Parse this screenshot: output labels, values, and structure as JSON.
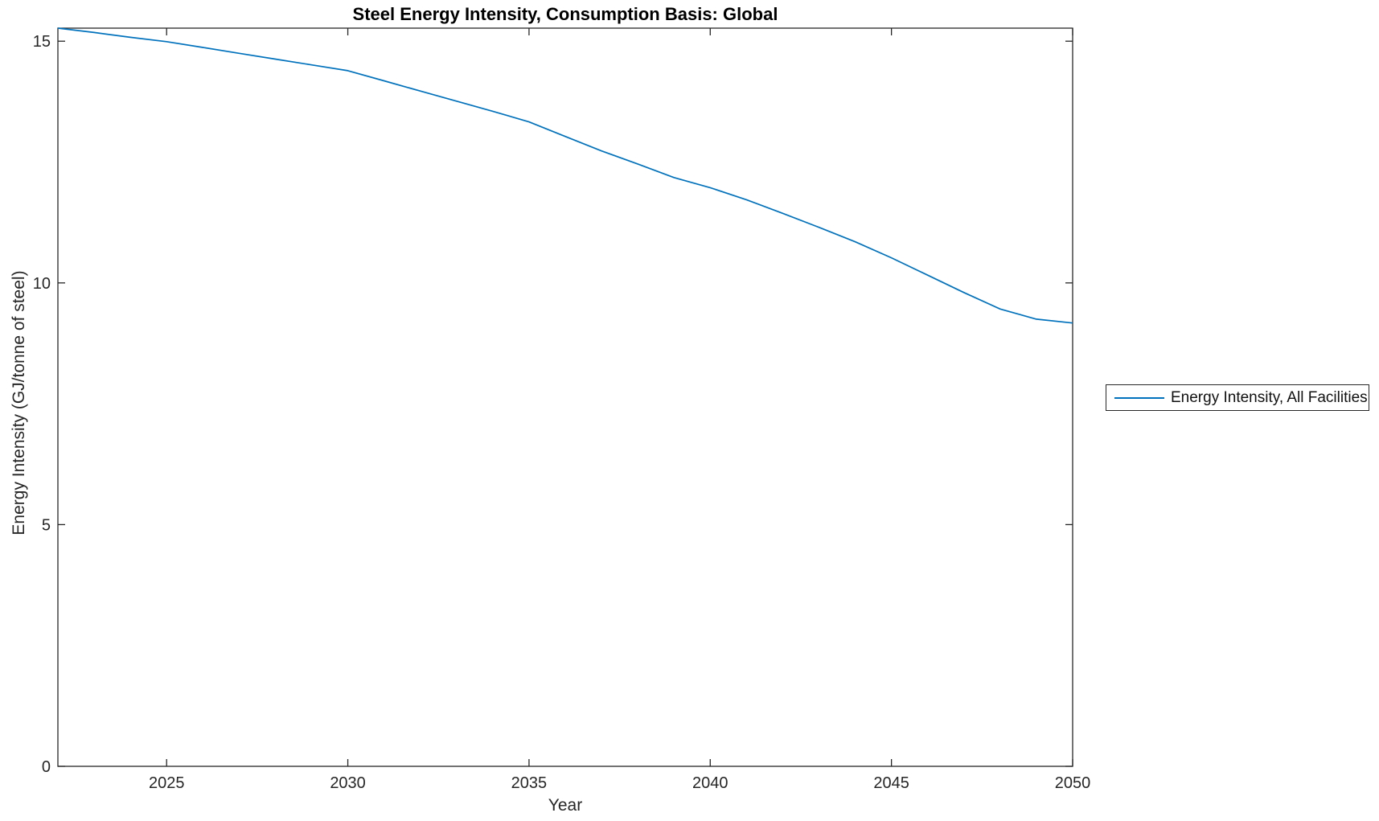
{
  "figure": {
    "background": "#ffffff"
  },
  "chart_data": {
    "type": "line",
    "title": "Steel Energy Intensity, Consumption Basis: Global",
    "xlabel": "Year",
    "ylabel": "Energy Intensity (GJ/tonne of steel)",
    "xlim": [
      2022,
      2050
    ],
    "ylim": [
      0,
      15.27
    ],
    "x_ticks": [
      "2025",
      "2030",
      "2035",
      "2040",
      "2045",
      "2050"
    ],
    "y_ticks": [
      "0",
      "5",
      "10",
      "15"
    ],
    "grid": false,
    "box": true,
    "tick_direction": "in",
    "colors": {
      "line": "#0072BD",
      "axis": "#262626",
      "title": "#000000"
    },
    "legend": {
      "position": "outside-right",
      "entries": [
        {
          "label": "Energy Intensity, All Facilities",
          "color": "#0072BD"
        }
      ]
    },
    "series": [
      {
        "name": "Energy Intensity, All Facilities",
        "color": "#0072BD",
        "x": [
          2022,
          2023,
          2024,
          2025,
          2026,
          2027,
          2028,
          2029,
          2030,
          2031,
          2032,
          2033,
          2034,
          2035,
          2036,
          2037,
          2038,
          2039,
          2040,
          2041,
          2042,
          2043,
          2044,
          2045,
          2046,
          2047,
          2048,
          2049,
          2050
        ],
        "y": [
          15.27,
          15.18,
          15.08,
          14.99,
          14.87,
          14.75,
          14.63,
          14.51,
          14.39,
          14.18,
          13.97,
          13.76,
          13.55,
          13.33,
          13.03,
          12.73,
          12.46,
          12.18,
          11.97,
          11.72,
          11.44,
          11.15,
          10.85,
          10.52,
          10.16,
          9.8,
          9.46,
          9.25,
          9.17
        ]
      }
    ]
  }
}
